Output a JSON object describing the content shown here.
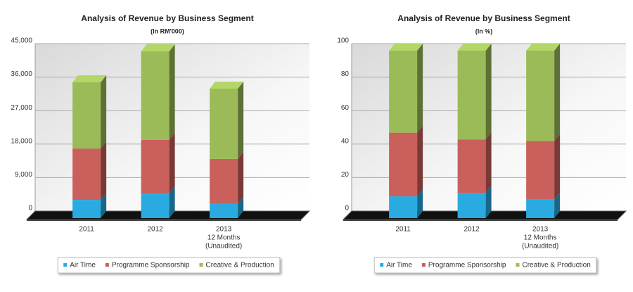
{
  "chart_data": [
    {
      "type": "bar",
      "stacked": true,
      "title": "Analysis of Revenue by Business Segment",
      "subtitle": "(In RM'000)",
      "categories": [
        [
          "2011"
        ],
        [
          "2012"
        ],
        [
          "2013",
          "12 Months",
          "(Unaudited)"
        ]
      ],
      "series": [
        {
          "name": "Air Time",
          "color": "#29abe2",
          "values": [
            4900,
            6600,
            3800
          ]
        },
        {
          "name": "Programme Sponsorship",
          "color": "#c9605c",
          "values": [
            13800,
            14400,
            12100
          ]
        },
        {
          "name": "Creative & Production",
          "color": "#9bbb59",
          "values": [
            17800,
            23800,
            18900
          ]
        }
      ],
      "ylim": [
        0,
        45000
      ],
      "yticks": [
        0,
        {
          "value": 9000,
          "label": "9,000"
        },
        {
          "value": 18000,
          "label": "18,000"
        },
        {
          "value": 27000,
          "label": "27,000"
        },
        {
          "value": 36000,
          "label": "36,000"
        },
        {
          "value": 45000,
          "label": "45,000"
        }
      ],
      "grid": true,
      "legend": "bottom"
    },
    {
      "type": "bar",
      "stacked": true,
      "title": "Analysis of Revenue by Business Segment",
      "subtitle": "(In %)",
      "categories": [
        [
          "2011"
        ],
        [
          "2012"
        ],
        [
          "2013",
          "12 Months",
          "(Unaudited)"
        ]
      ],
      "series": [
        {
          "name": "Air Time",
          "color": "#29abe2",
          "values": [
            13,
            15,
            11
          ]
        },
        {
          "name": "Programme Sponsorship",
          "color": "#c9605c",
          "values": [
            38,
            32,
            35
          ]
        },
        {
          "name": "Creative & Production",
          "color": "#9bbb59",
          "values": [
            49,
            53,
            54
          ]
        }
      ],
      "ylim": [
        0,
        100
      ],
      "yticks": [
        0,
        20,
        40,
        60,
        80,
        100
      ],
      "grid": true,
      "legend": "bottom"
    }
  ]
}
